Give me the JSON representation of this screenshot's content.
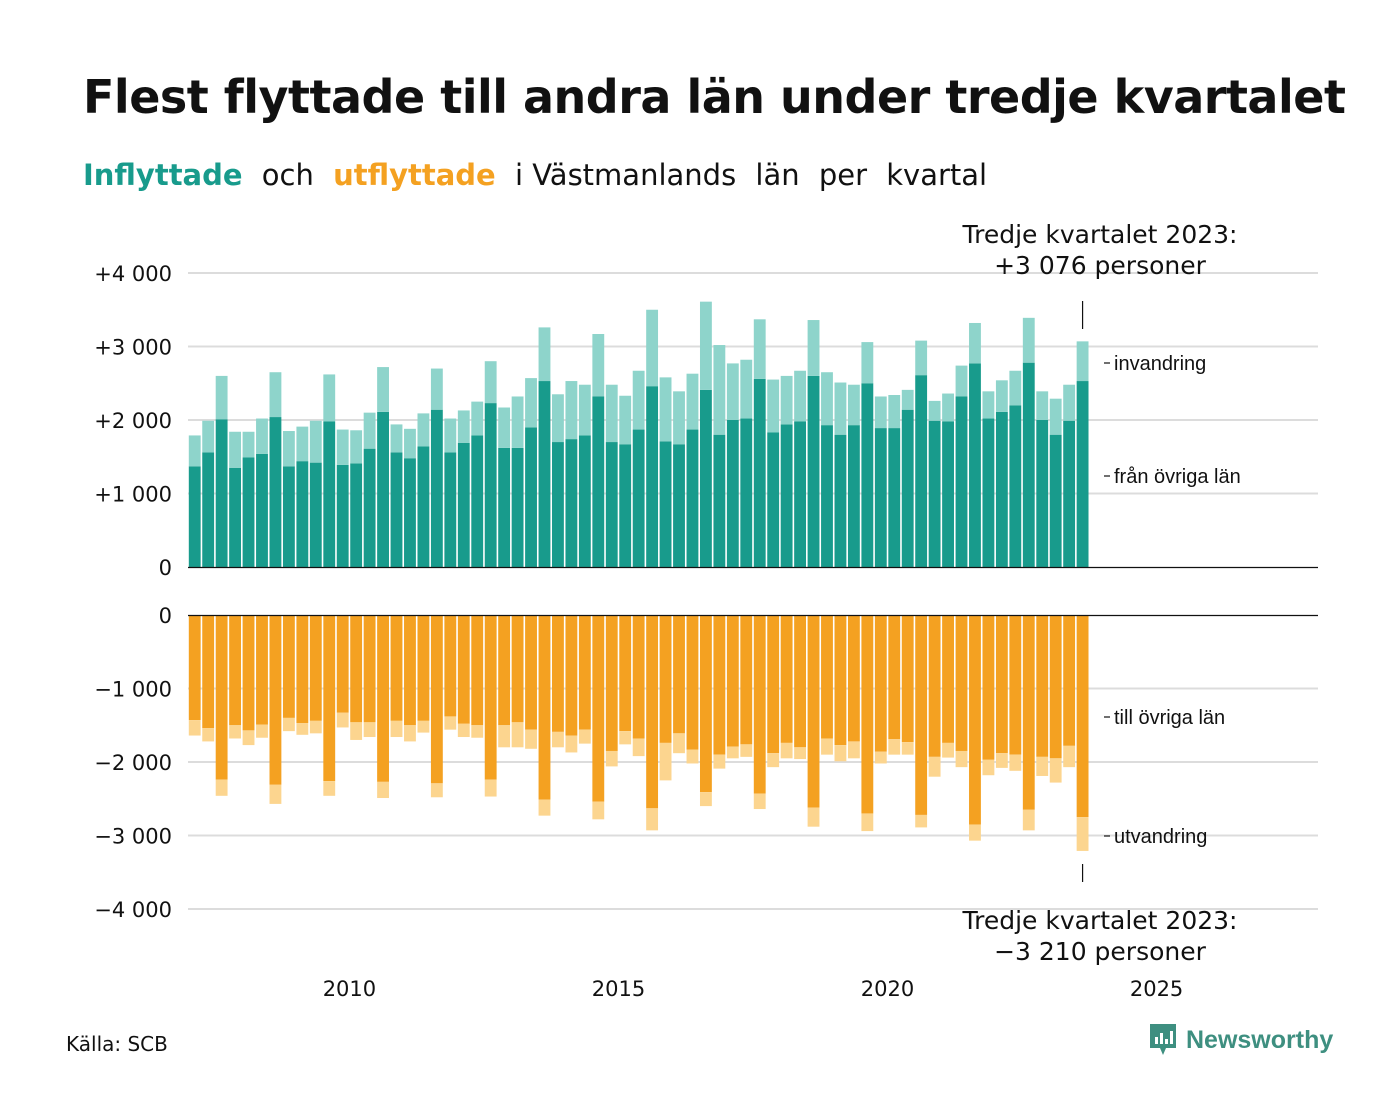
{
  "title": "Flest flyttade till andra län under tredje kvartalet",
  "subtitle": {
    "part1": "Inflyttade",
    "part2": "och",
    "part3": "utflyttade",
    "part4": "i Västmanlands",
    "part5": "län",
    "part6": "per",
    "part7": "kvartal"
  },
  "source": "Källa: SCB",
  "logo_text": "Newsworthy",
  "colors": {
    "inflow_dark": "#189b8c",
    "inflow_light": "#8ed4cb",
    "outflow_dark": "#f4a121",
    "outflow_light": "#fcd58f"
  },
  "annotations": {
    "top_line1": "Tredje kvartalet 2023:",
    "top_line2": "+3 076 personer",
    "bottom_line1": "Tredje kvartalet 2023:",
    "bottom_line2": "−3 210 personer",
    "invandring": "invandring",
    "fran_ovriga_lan": "från övriga län",
    "till_ovriga_lan": "till övriga län",
    "utvandring": "utvandring"
  },
  "chart_data": {
    "type": "bar",
    "xlim": [
      2007,
      2028
    ],
    "x_ticks": [
      {
        "value": 2010,
        "label": "2010"
      },
      {
        "value": 2015,
        "label": "2015"
      },
      {
        "value": 2020,
        "label": "2020"
      },
      {
        "value": 2025,
        "label": "2025"
      }
    ],
    "top_panel": {
      "ylim": [
        0,
        4000
      ],
      "y_ticks": [
        {
          "value": 4000,
          "label": "+4 000"
        },
        {
          "value": 3000,
          "label": "+3 000"
        },
        {
          "value": 2000,
          "label": "+2 000"
        },
        {
          "value": 1000,
          "label": "+1 000"
        },
        {
          "value": 0,
          "label": "0"
        }
      ]
    },
    "bottom_panel": {
      "ylim": [
        -4000,
        0
      ],
      "y_ticks": [
        {
          "value": 0,
          "label": "0"
        },
        {
          "value": -1000,
          "label": "−1 000"
        },
        {
          "value": -2000,
          "label": "−2 000"
        },
        {
          "value": -3000,
          "label": "−3 000"
        },
        {
          "value": -4000,
          "label": "−4 000"
        }
      ]
    },
    "quarters": [
      "2007K1",
      "2007K2",
      "2007K3",
      "2007K4",
      "2008K1",
      "2008K2",
      "2008K3",
      "2008K4",
      "2009K1",
      "2009K2",
      "2009K3",
      "2009K4",
      "2010K1",
      "2010K2",
      "2010K3",
      "2010K4",
      "2011K1",
      "2011K2",
      "2011K3",
      "2011K4",
      "2012K1",
      "2012K2",
      "2012K3",
      "2012K4",
      "2013K1",
      "2013K2",
      "2013K3",
      "2013K4",
      "2014K1",
      "2014K2",
      "2014K3",
      "2014K4",
      "2015K1",
      "2015K2",
      "2015K3",
      "2015K4",
      "2016K1",
      "2016K2",
      "2016K3",
      "2016K4",
      "2017K1",
      "2017K2",
      "2017K3",
      "2017K4",
      "2018K1",
      "2018K2",
      "2018K3",
      "2018K4",
      "2019K1",
      "2019K2",
      "2019K3",
      "2019K4",
      "2020K1",
      "2020K2",
      "2020K3",
      "2020K4",
      "2021K1",
      "2021K2",
      "2021K3",
      "2021K4",
      "2022K1",
      "2022K2",
      "2022K3",
      "2022K4",
      "2023K1",
      "2023K2",
      "2023K3"
    ],
    "series": [
      {
        "name": "från övriga län",
        "values": [
          1370,
          1560,
          2010,
          1350,
          1490,
          1540,
          2040,
          1370,
          1440,
          1420,
          1980,
          1390,
          1410,
          1610,
          2110,
          1560,
          1480,
          1640,
          2140,
          1560,
          1690,
          1790,
          2230,
          1620,
          1620,
          1900,
          2530,
          1700,
          1740,
          1790,
          2320,
          1700,
          1670,
          1870,
          2460,
          1710,
          1670,
          1870,
          2410,
          1800,
          2000,
          2020,
          2560,
          1830,
          1940,
          1980,
          2600,
          1930,
          1800,
          1930,
          2500,
          1890,
          1890,
          2140,
          2610,
          1990,
          1980,
          2320,
          2770,
          2020,
          2110,
          2200,
          2780,
          2000,
          1800,
          1990,
          2530
        ]
      },
      {
        "name": "invandring",
        "values": [
          420,
          430,
          590,
          490,
          350,
          480,
          610,
          480,
          470,
          570,
          640,
          480,
          450,
          490,
          610,
          380,
          400,
          450,
          560,
          460,
          440,
          460,
          570,
          550,
          700,
          670,
          730,
          650,
          790,
          690,
          850,
          780,
          660,
          800,
          1040,
          870,
          720,
          760,
          1200,
          1220,
          770,
          800,
          810,
          720,
          660,
          690,
          760,
          720,
          710,
          550,
          560,
          430,
          450,
          270,
          470,
          270,
          380,
          420,
          550,
          370,
          430,
          470,
          610,
          390,
          490,
          490,
          540
        ]
      },
      {
        "name": "till övriga län",
        "values": [
          -1430,
          -1540,
          -2240,
          -1500,
          -1570,
          -1490,
          -2310,
          -1400,
          -1470,
          -1440,
          -2260,
          -1330,
          -1460,
          -1460,
          -2270,
          -1440,
          -1500,
          -1440,
          -2290,
          -1380,
          -1480,
          -1500,
          -2240,
          -1500,
          -1460,
          -1560,
          -2510,
          -1590,
          -1640,
          -1560,
          -2540,
          -1850,
          -1580,
          -1680,
          -2630,
          -1740,
          -1610,
          -1830,
          -2410,
          -1900,
          -1790,
          -1760,
          -2430,
          -1880,
          -1740,
          -1800,
          -2620,
          -1680,
          -1770,
          -1720,
          -2700,
          -1860,
          -1690,
          -1730,
          -2720,
          -1930,
          -1740,
          -1850,
          -2850,
          -1970,
          -1880,
          -1900,
          -2650,
          -1930,
          -1950,
          -1780,
          -2750
        ]
      },
      {
        "name": "utvandring",
        "values": [
          -210,
          -180,
          -220,
          -180,
          -200,
          -180,
          -260,
          -180,
          -160,
          -170,
          -200,
          -200,
          -240,
          -200,
          -220,
          -220,
          -220,
          -160,
          -190,
          -180,
          -180,
          -170,
          -230,
          -300,
          -340,
          -260,
          -220,
          -210,
          -230,
          -190,
          -240,
          -210,
          -180,
          -240,
          -300,
          -510,
          -270,
          -190,
          -190,
          -190,
          -160,
          -170,
          -210,
          -190,
          -210,
          -160,
          -260,
          -220,
          -220,
          -230,
          -240,
          -160,
          -210,
          -170,
          -170,
          -270,
          -200,
          -220,
          -220,
          -210,
          -200,
          -220,
          -280,
          -260,
          -330,
          -290,
          -460
        ]
      }
    ]
  }
}
